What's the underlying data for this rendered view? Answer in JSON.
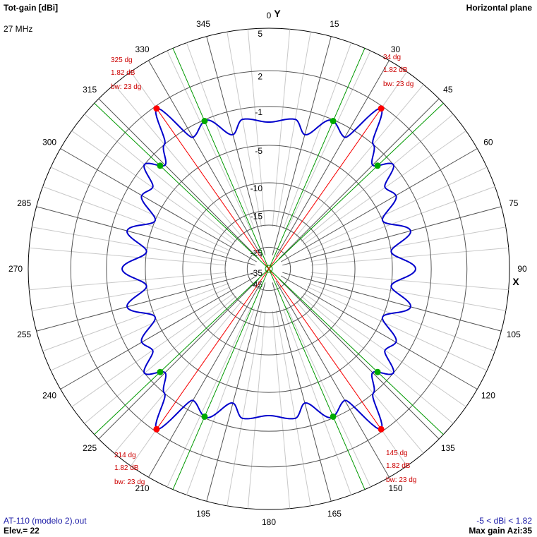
{
  "header": {
    "title_left": "Tot-gain [dBi]",
    "frequency": "27 MHz",
    "title_right": "Horizontal plane"
  },
  "footer": {
    "file": "AT-110 (modelo 2).out",
    "elevation": "Elev.= 22",
    "range": "-5 < dBi < 1.82",
    "max_gain": "Max gain Azi:35"
  },
  "axes": {
    "y_label": "Y",
    "x_label": "X"
  },
  "colors": {
    "pattern": "#0000cc",
    "max_marker": "#ff0000",
    "bw_marker": "#00aa00",
    "max_line": "#ff0000",
    "bw_line": "#009900",
    "grid": "#000000",
    "annotation": "#cc0000"
  },
  "chart_data": {
    "type": "polar",
    "title": "Tot-gain [dBi]",
    "subtitle": "Horizontal plane",
    "units": "dBi",
    "frequency": "27 MHz",
    "elevation_deg": 22,
    "max_gain_dbi": 1.82,
    "max_gain_azimuth_deg": 35,
    "angle_labels": [
      0,
      15,
      30,
      45,
      60,
      75,
      90,
      105,
      120,
      135,
      150,
      165,
      180,
      195,
      210,
      225,
      240,
      255,
      270,
      285,
      300,
      315,
      330,
      345
    ],
    "radial_labels": [
      "5",
      "2",
      "-1",
      "-5",
      "-10",
      "-15",
      "-25",
      "-35",
      "-45"
    ],
    "lobes": [
      {
        "azimuth": "34 dg",
        "gain": "1.82 dB",
        "beamwidth": "bw: 23 dg"
      },
      {
        "azimuth": "325 dg",
        "gain": "1.82 dB",
        "beamwidth": "bw: 23 dg"
      },
      {
        "azimuth": "145 dg",
        "gain": "1.82 dB",
        "beamwidth": "bw: 23 dg"
      },
      {
        "azimuth": "214 dg",
        "gain": "1.82 dB",
        "beamwidth": "bw: 23 dg"
      }
    ],
    "pattern": {
      "azimuth_deg": [
        0,
        10,
        15,
        23,
        30,
        35,
        40,
        45,
        50,
        55,
        60,
        67,
        75,
        82,
        90
      ],
      "gain_dbi": [
        -2.5,
        -2.0,
        -3.3,
        -1.1,
        -2.0,
        1.82,
        -1.0,
        -2.5,
        -1.0,
        -3.0,
        -2.5,
        -5.0,
        -2.5,
        -5.0,
        -2.5
      ],
      "symmetry": "mirror across 0-180 and 90-270 axes"
    }
  }
}
